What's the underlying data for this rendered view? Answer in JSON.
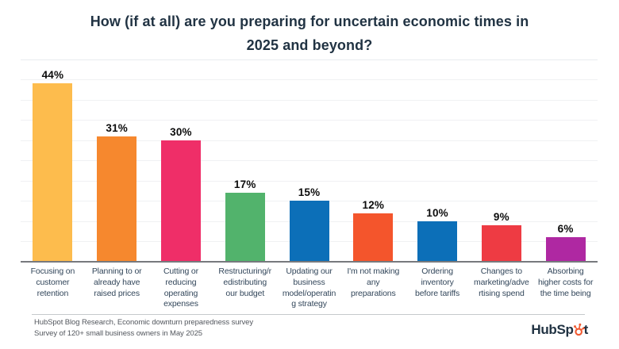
{
  "header": {
    "title": "How (if at all) are you preparing for uncertain economic times in\n2025 and beyond?"
  },
  "chart_data": {
    "type": "bar",
    "title": "How (if at all) are you preparing for uncertain economic times in 2025 and beyond?",
    "categories": [
      "Focusing on customer retention",
      "Planning to or already have raised prices",
      "Cutting or reducing operating expenses",
      "Restructuring/redistributing our budget",
      "Updating our business model/operating strategy",
      "I'm not making any preparations",
      "Ordering inventory before tariffs",
      "Changes to marketing/advertising spend",
      "Absorbing higher costs for the time being"
    ],
    "tick_labels": [
      "Focusing on\ncustomer\nretention",
      "Planning to or\nalready have\nraised prices",
      "Cutting or\nreducing\noperating\nexpenses",
      "Restructuring/r\nedistributing\nour budget",
      "Updating our\nbusiness\nmodel/operatin\ng strategy",
      "I'm not making\nany\npreparations",
      "Ordering\ninventory\nbefore tariffs",
      "Changes to\nmarketing/adve\nrtising spend",
      "Absorbing\nhigher costs for\nthe time being"
    ],
    "values": [
      44,
      31,
      30,
      17,
      15,
      12,
      10,
      9,
      6
    ],
    "value_labels": [
      "44%",
      "31%",
      "30%",
      "17%",
      "15%",
      "12%",
      "10%",
      "9%",
      "6%"
    ],
    "bar_colors": [
      "#FDBC4D",
      "#F6882E",
      "#EF2E68",
      "#52B36C",
      "#0C6FB8",
      "#F4552C",
      "#0C6FB8",
      "#EE3B43",
      "#AF28A2"
    ],
    "xlabel": "",
    "ylabel": "",
    "ylim": [
      0,
      45
    ],
    "grid": "horizontal gridlines every 5%, no y-axis tick labels",
    "legend": "none"
  },
  "footer": {
    "source_line1": "HubSpot Blog Research, Economic downturn preparedness survey",
    "source_line2": "Survey of 120+ small business owners in May 2025",
    "logo_name": "HubSpot",
    "logo_text_left": "HubSp",
    "logo_text_right": "t",
    "logo_accent_color": "#F15B33",
    "logo_text_color": "#213343"
  }
}
